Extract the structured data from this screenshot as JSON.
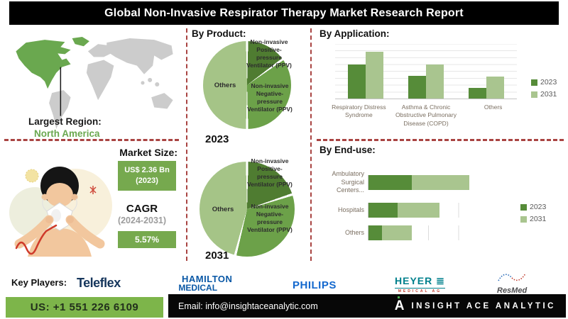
{
  "title": "Global Non-Invasive Respirator Therapy Market Research Report",
  "largest_region": {
    "label": "Largest Region:",
    "value": "North America"
  },
  "market_size": {
    "label": "Market Size:",
    "value": "US$ 2.36 Bn",
    "year": "(2023)"
  },
  "cagr": {
    "label": "CAGR",
    "period": "(2024-2031)",
    "value": "5.57%"
  },
  "sections": {
    "product": "By Product:",
    "application": "By Application:",
    "end_use": "By End-use:"
  },
  "colors": {
    "accent_green": "#76a94e",
    "phone_green": "#7db54a",
    "region_green": "#6aa84f",
    "dashed_red": "#a94442",
    "series_2023": "#568c39",
    "series_2031": "#a9c58f",
    "pie_positive": "#4f7c31",
    "pie_negative": "#6ca149",
    "pie_others": "#a5c487"
  },
  "chart_data": [
    {
      "type": "pie",
      "title": "2023",
      "labels": [
        "Non-invasive Positive-pressure Ventilator (PPV)",
        "Non-invasive Negative-pressure Ventilator (PPV)",
        "Others"
      ],
      "values": [
        15,
        35,
        50
      ]
    },
    {
      "type": "pie",
      "title": "2031",
      "labels": [
        "Non-invasive Positive-pressure Ventilator (PPV)",
        "Non-invasive Negative-pressure Ventilator (PPV)",
        "Others"
      ],
      "values": [
        20,
        34,
        46
      ]
    },
    {
      "type": "bar",
      "title": "By Application:",
      "categories": [
        "Respiratory Distress Syndrome",
        "Asthma & Chronic Obstructive Pulmonary Disease (COPD)",
        "Others"
      ],
      "series": [
        {
          "name": "2023",
          "values": [
            62,
            42,
            19
          ]
        },
        {
          "name": "2031",
          "values": [
            86,
            62,
            40
          ]
        }
      ],
      "ylim": [
        0,
        100
      ],
      "grid": true,
      "legend_position": "right"
    },
    {
      "type": "bar",
      "subtype": "horizontal-stacked",
      "title": "By End-use:",
      "categories": [
        "Ambulatory Surgical Centers...",
        "Hospitals",
        "Others"
      ],
      "series": [
        {
          "name": "2023",
          "values": [
            36,
            24,
            11
          ]
        },
        {
          "name": "2031",
          "values": [
            48,
            35,
            25
          ]
        }
      ],
      "xlim": [
        0,
        100
      ],
      "grid": true,
      "legend_position": "right"
    }
  ],
  "key_players": {
    "label": "Key Players:",
    "teleflex": "Teleflex",
    "hamilton_line1": "HAMILTON",
    "hamilton_line2": "MEDICAL",
    "philips": "PHILIPS",
    "heyer": "HEYER ≣",
    "heyer_sub": "MEDICAL AG",
    "resmed": "ResMed"
  },
  "footer": {
    "phone": "US: +1 551 226 6109",
    "email": "Email: info@insightaceanalytic.com",
    "brand": "INSIGHT ACE ANALYTIC",
    "brand_mark": "A"
  }
}
